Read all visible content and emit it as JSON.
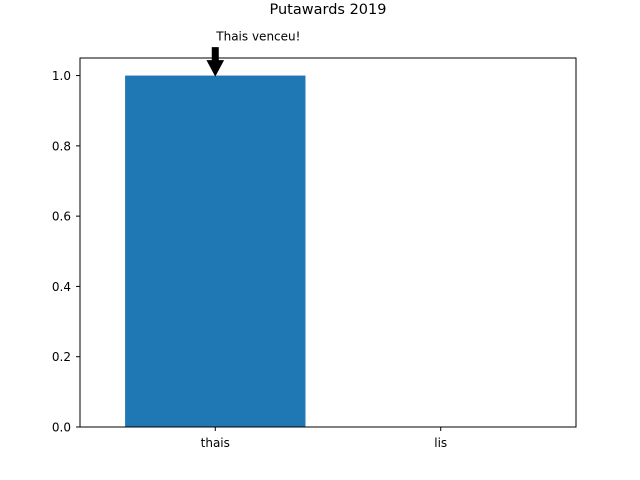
{
  "chart_data": {
    "type": "bar",
    "title": "Putawards 2019",
    "categories": [
      "thais",
      "lis"
    ],
    "values": [
      1.0,
      0.0
    ],
    "xlabel": "",
    "ylabel": "",
    "ylim": [
      0.0,
      1.05
    ],
    "yticks": [
      "0.0",
      "0.2",
      "0.4",
      "0.6",
      "0.8",
      "1.0"
    ],
    "grid": false,
    "bar_color": "#1f77b4",
    "annotation": {
      "text": "Thais venceu!",
      "category": "thais",
      "value": 1.0,
      "arrow": "down"
    }
  }
}
